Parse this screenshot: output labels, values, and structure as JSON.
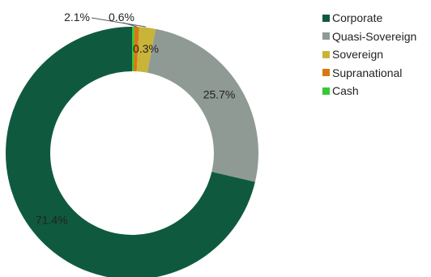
{
  "chart_data": {
    "type": "pie",
    "title": "",
    "donut": true,
    "categories": [
      "Corporate",
      "Quasi-Sovereign",
      "Sovereign",
      "Supranational",
      "Cash"
    ],
    "values": [
      71.4,
      25.7,
      2.1,
      0.6,
      0.3
    ],
    "data_labels": [
      "71.4%",
      "25.7%",
      "2.1%",
      "0.6%",
      "0.3%"
    ],
    "colors": [
      "#0f5a3e",
      "#8f9a95",
      "#c9b43a",
      "#d97810",
      "#35c935"
    ],
    "legend_position": "right"
  }
}
